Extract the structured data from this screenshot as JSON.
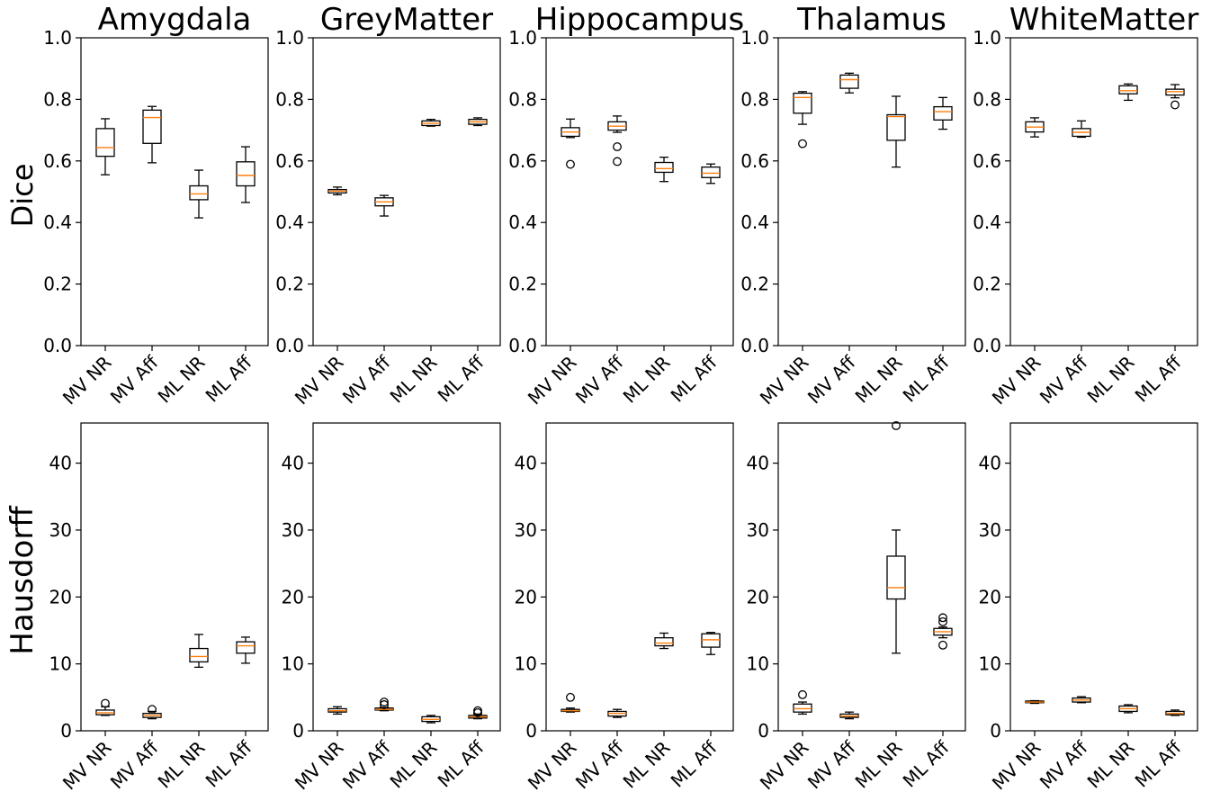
{
  "chart_data": {
    "type": "box",
    "categories": [
      "MV NR",
      "MV Aff",
      "ML NR",
      "ML Aff"
    ],
    "row_labels": [
      "Dice",
      "Hausdorff"
    ],
    "colors": {
      "box": "#000000",
      "median": "#ff7f0e",
      "background": "#ffffff"
    },
    "grid": false,
    "charts": [
      {
        "title": "Amygdala",
        "dice": {
          "ylim": [
            0,
            1
          ],
          "yticks": [
            "0.0",
            "0.2",
            "0.4",
            "0.6",
            "0.8",
            "1.0"
          ],
          "boxes": [
            {
              "whislo": 0.555,
              "q1": 0.615,
              "med": 0.643,
              "q3": 0.705,
              "whishi": 0.737,
              "fliers": []
            },
            {
              "whislo": 0.594,
              "q1": 0.657,
              "med": 0.741,
              "q3": 0.765,
              "whishi": 0.777,
              "fliers": []
            },
            {
              "whislo": 0.415,
              "q1": 0.474,
              "med": 0.493,
              "q3": 0.519,
              "whishi": 0.57,
              "fliers": []
            },
            {
              "whislo": 0.465,
              "q1": 0.519,
              "med": 0.553,
              "q3": 0.597,
              "whishi": 0.646,
              "fliers": []
            }
          ]
        },
        "hausdorff": {
          "ylim": [
            0,
            46
          ],
          "yticks": [
            "0",
            "10",
            "20",
            "30",
            "40"
          ],
          "boxes": [
            {
              "whislo": 2.3,
              "q1": 2.4,
              "med": 2.7,
              "q3": 3.1,
              "whishi": 3.6,
              "fliers": [
                4.1
              ]
            },
            {
              "whislo": 1.8,
              "q1": 2.0,
              "med": 2.3,
              "q3": 2.6,
              "whishi": 2.9,
              "fliers": [
                3.2
              ]
            },
            {
              "whislo": 9.5,
              "q1": 10.3,
              "med": 11.1,
              "q3": 12.3,
              "whishi": 14.4,
              "fliers": []
            },
            {
              "whislo": 10.1,
              "q1": 11.6,
              "med": 12.7,
              "q3": 13.3,
              "whishi": 14.0,
              "fliers": []
            }
          ]
        }
      },
      {
        "title": "GreyMatter",
        "dice": {
          "ylim": [
            0,
            1
          ],
          "yticks": [
            "0.0",
            "0.2",
            "0.4",
            "0.6",
            "0.8",
            "1.0"
          ],
          "boxes": [
            {
              "whislo": 0.49,
              "q1": 0.496,
              "med": 0.502,
              "q3": 0.507,
              "whishi": 0.515,
              "fliers": []
            },
            {
              "whislo": 0.421,
              "q1": 0.454,
              "med": 0.467,
              "q3": 0.48,
              "whishi": 0.488,
              "fliers": []
            },
            {
              "whislo": 0.713,
              "q1": 0.715,
              "med": 0.722,
              "q3": 0.73,
              "whishi": 0.735,
              "fliers": []
            },
            {
              "whislo": 0.715,
              "q1": 0.719,
              "med": 0.727,
              "q3": 0.735,
              "whishi": 0.74,
              "fliers": []
            }
          ]
        },
        "hausdorff": {
          "ylim": [
            0,
            46
          ],
          "yticks": [
            "0",
            "10",
            "20",
            "30",
            "40"
          ],
          "boxes": [
            {
              "whislo": 2.5,
              "q1": 2.8,
              "med": 3.0,
              "q3": 3.3,
              "whishi": 3.6,
              "fliers": []
            },
            {
              "whislo": 3.0,
              "q1": 3.1,
              "med": 3.2,
              "q3": 3.4,
              "whishi": 3.5,
              "fliers": [
                3.9,
                4.3
              ]
            },
            {
              "whislo": 1.2,
              "q1": 1.4,
              "med": 1.7,
              "q3": 2.1,
              "whishi": 2.3,
              "fliers": []
            },
            {
              "whislo": 1.8,
              "q1": 1.9,
              "med": 2.1,
              "q3": 2.3,
              "whishi": 2.5,
              "fliers": [
                2.7,
                3.0
              ]
            }
          ]
        }
      },
      {
        "title": "Hippocampus",
        "dice": {
          "ylim": [
            0,
            1
          ],
          "yticks": [
            "0.0",
            "0.2",
            "0.4",
            "0.6",
            "0.8",
            "1.0"
          ],
          "boxes": [
            {
              "whislo": 0.676,
              "q1": 0.68,
              "med": 0.694,
              "q3": 0.708,
              "whishi": 0.736,
              "fliers": [
                0.589
              ]
            },
            {
              "whislo": 0.693,
              "q1": 0.7,
              "med": 0.713,
              "q3": 0.727,
              "whishi": 0.746,
              "fliers": [
                0.646,
                0.598
              ]
            },
            {
              "whislo": 0.533,
              "q1": 0.563,
              "med": 0.575,
              "q3": 0.595,
              "whishi": 0.612,
              "fliers": []
            },
            {
              "whislo": 0.527,
              "q1": 0.546,
              "med": 0.56,
              "q3": 0.58,
              "whishi": 0.59,
              "fliers": []
            }
          ]
        },
        "hausdorff": {
          "ylim": [
            0,
            46
          ],
          "yticks": [
            "0",
            "10",
            "20",
            "30",
            "40"
          ],
          "boxes": [
            {
              "whislo": 2.8,
              "q1": 2.9,
              "med": 3.0,
              "q3": 3.2,
              "whishi": 3.4,
              "fliers": [
                5.0
              ]
            },
            {
              "whislo": 2.0,
              "q1": 2.2,
              "med": 2.6,
              "q3": 2.9,
              "whishi": 3.2,
              "fliers": []
            },
            {
              "whislo": 12.3,
              "q1": 12.7,
              "med": 13.1,
              "q3": 13.9,
              "whishi": 14.6,
              "fliers": []
            },
            {
              "whislo": 11.4,
              "q1": 12.5,
              "med": 13.6,
              "q3": 14.5,
              "whishi": 14.7,
              "fliers": []
            }
          ]
        }
      },
      {
        "title": "Thalamus",
        "dice": {
          "ylim": [
            0,
            1
          ],
          "yticks": [
            "0.0",
            "0.2",
            "0.4",
            "0.6",
            "0.8",
            "1.0"
          ],
          "boxes": [
            {
              "whislo": 0.719,
              "q1": 0.755,
              "med": 0.806,
              "q3": 0.82,
              "whishi": 0.825,
              "fliers": [
                0.656
              ]
            },
            {
              "whislo": 0.821,
              "q1": 0.836,
              "med": 0.864,
              "q3": 0.879,
              "whishi": 0.885,
              "fliers": []
            },
            {
              "whislo": 0.58,
              "q1": 0.667,
              "med": 0.744,
              "q3": 0.75,
              "whishi": 0.81,
              "fliers": []
            },
            {
              "whislo": 0.703,
              "q1": 0.733,
              "med": 0.76,
              "q3": 0.776,
              "whishi": 0.806,
              "fliers": []
            }
          ]
        },
        "hausdorff": {
          "ylim": [
            0,
            46
          ],
          "yticks": [
            "0",
            "10",
            "20",
            "30",
            "40"
          ],
          "boxes": [
            {
              "whislo": 2.5,
              "q1": 2.8,
              "med": 3.3,
              "q3": 4.0,
              "whishi": 4.3,
              "fliers": [
                5.4
              ]
            },
            {
              "whislo": 1.8,
              "q1": 2.0,
              "med": 2.2,
              "q3": 2.5,
              "whishi": 2.8,
              "fliers": []
            },
            {
              "whislo": 11.6,
              "q1": 19.7,
              "med": 21.4,
              "q3": 26.1,
              "whishi": 30.0,
              "fliers": [
                45.6
              ]
            },
            {
              "whislo": 13.9,
              "q1": 14.3,
              "med": 14.8,
              "q3": 15.3,
              "whishi": 15.5,
              "fliers": [
                12.8,
                16.3,
                16.9
              ]
            }
          ]
        }
      },
      {
        "title": "WhiteMatter",
        "dice": {
          "ylim": [
            0,
            1
          ],
          "yticks": [
            "0.0",
            "0.2",
            "0.4",
            "0.6",
            "0.8",
            "1.0"
          ],
          "boxes": [
            {
              "whislo": 0.678,
              "q1": 0.694,
              "med": 0.71,
              "q3": 0.727,
              "whishi": 0.74,
              "fliers": []
            },
            {
              "whislo": 0.677,
              "q1": 0.68,
              "med": 0.693,
              "q3": 0.705,
              "whishi": 0.73,
              "fliers": []
            },
            {
              "whislo": 0.797,
              "q1": 0.818,
              "med": 0.828,
              "q3": 0.844,
              "whishi": 0.85,
              "fliers": []
            },
            {
              "whislo": 0.805,
              "q1": 0.814,
              "med": 0.825,
              "q3": 0.833,
              "whishi": 0.848,
              "fliers": [
                0.782
              ]
            }
          ]
        },
        "hausdorff": {
          "ylim": [
            0,
            46
          ],
          "yticks": [
            "0",
            "10",
            "20",
            "30",
            "40"
          ],
          "boxes": [
            {
              "whislo": 4.1,
              "q1": 4.2,
              "med": 4.3,
              "q3": 4.45,
              "whishi": 4.5,
              "fliers": []
            },
            {
              "whislo": 4.2,
              "q1": 4.3,
              "med": 4.6,
              "q3": 4.9,
              "whishi": 5.1,
              "fliers": []
            },
            {
              "whislo": 2.7,
              "q1": 2.9,
              "med": 3.3,
              "q3": 3.7,
              "whishi": 3.9,
              "fliers": []
            },
            {
              "whislo": 2.3,
              "q1": 2.4,
              "med": 2.6,
              "q3": 2.9,
              "whishi": 3.1,
              "fliers": []
            }
          ]
        }
      }
    ]
  }
}
